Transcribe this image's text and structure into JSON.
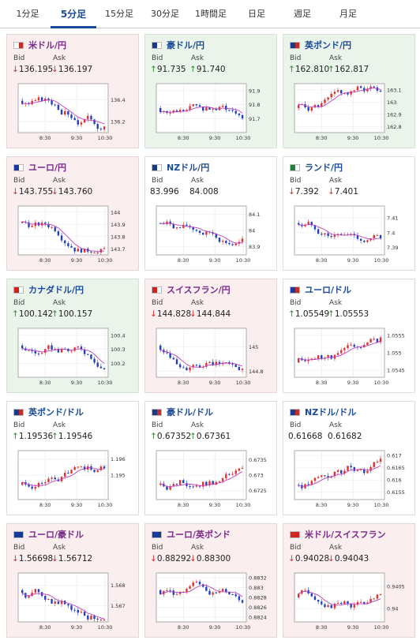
{
  "tabs": [
    {
      "label": "1分足",
      "active": false
    },
    {
      "label": "5分足",
      "active": true
    },
    {
      "label": "15分足",
      "active": false
    },
    {
      "label": "30分足",
      "active": false
    },
    {
      "label": "1時間足",
      "active": false
    },
    {
      "label": "日足",
      "active": false
    },
    {
      "label": "週足",
      "active": false
    },
    {
      "label": "月足",
      "active": false
    }
  ],
  "bid_label": "Bid",
  "ask_label": "Ask",
  "colors": {
    "up_candle": "#e03030",
    "down_candle": "#2040c0",
    "ma_line": "#c040c0",
    "down_bg": "#fbeeee",
    "up_bg": "#eaf4ea"
  },
  "x_ticks": [
    "8:30",
    "9:30",
    "10:30"
  ],
  "cards": [
    {
      "pair": "米ドル/円",
      "trend": "down",
      "bid": "136.195",
      "ask": "136.197",
      "bid_dir": "down",
      "ask_dir": "down",
      "flags": [
        "#ffffff",
        "#c0302a"
      ],
      "y_ticks": [
        "136.4",
        "136.2"
      ],
      "y_range": [
        136.1,
        136.55
      ],
      "ma_dir": -1
    },
    {
      "pair": "豪ドル/円",
      "trend": "up",
      "bid": "91.735",
      "ask": "91.740",
      "bid_dir": "up",
      "ask_dir": "up",
      "flags": [
        "#1a3a8a",
        "#ffffff"
      ],
      "y_ticks": [
        "91.9",
        "91.8",
        "91.7"
      ],
      "y_range": [
        91.6,
        91.95
      ],
      "ma_dir": 0
    },
    {
      "pair": "英ポンド/円",
      "trend": "up",
      "bid": "162.810",
      "ask": "162.817",
      "bid_dir": "up",
      "ask_dir": "up",
      "flags": [
        "#1a3a8a",
        "#c0302a"
      ],
      "y_ticks": [
        "163.1",
        "163",
        "162.9",
        "162.8"
      ],
      "y_range": [
        162.75,
        163.15
      ],
      "ma_dir": 0
    },
    {
      "pair": "ユーロ/円",
      "trend": "down",
      "bid": "143.755",
      "ask": "143.760",
      "bid_dir": "down",
      "ask_dir": "down",
      "flags": [
        "#1a3aa0",
        "#ffffff"
      ],
      "y_ticks": [
        "144",
        "143.9",
        "143.8",
        "143.7"
      ],
      "y_range": [
        143.65,
        144.05
      ],
      "ma_dir": -1
    },
    {
      "pair": "NZドル/円",
      "trend": "none",
      "bid": "83.996",
      "ask": "84.008",
      "bid_dir": "",
      "ask_dir": "",
      "flags": [
        "#1a3a8a",
        "#ffffff"
      ],
      "y_ticks": [
        "84.1",
        "84",
        "83.9"
      ],
      "y_range": [
        83.85,
        84.15
      ],
      "ma_dir": -1
    },
    {
      "pair": "ランド/円",
      "trend": "none",
      "bid": "7.392",
      "ask": "7.401",
      "bid_dir": "down",
      "ask_dir": "down",
      "flags": [
        "#208040",
        "#ffffff"
      ],
      "y_ticks": [
        "7.41",
        "7.4",
        "7.39"
      ],
      "y_range": [
        7.385,
        7.418
      ],
      "ma_dir": -1
    },
    {
      "pair": "カナダドル/円",
      "trend": "up",
      "bid": "100.142",
      "ask": "100.157",
      "bid_dir": "up",
      "ask_dir": "up",
      "flags": [
        "#d02020",
        "#ffffff"
      ],
      "y_ticks": [
        "100.4",
        "100.3",
        "100.2"
      ],
      "y_range": [
        100.1,
        100.45
      ],
      "ma_dir": -1
    },
    {
      "pair": "スイスフラン/円",
      "trend": "down",
      "bid": "144.828",
      "ask": "144.844",
      "bid_dir": "down",
      "ask_dir": "down",
      "flags": [
        "#d02020",
        "#ffffff"
      ],
      "y_ticks": [
        "145",
        "144.8"
      ],
      "y_range": [
        144.75,
        145.15
      ],
      "ma_dir": -1
    },
    {
      "pair": "ユーロ/ドル",
      "trend": "none",
      "bid": "1.05549",
      "ask": "1.05553",
      "bid_dir": "up",
      "ask_dir": "up",
      "flags": [
        "#1a3aa0",
        "#c0302a"
      ],
      "y_ticks": [
        "1.0555",
        "1.055",
        "1.0545"
      ],
      "y_range": [
        1.0543,
        1.0557
      ],
      "ma_dir": 1
    },
    {
      "pair": "英ポンド/ドル",
      "trend": "none",
      "bid": "1.19536",
      "ask": "1.19546",
      "bid_dir": "up",
      "ask_dir": "up",
      "flags": [
        "#1a3a8a",
        "#c0302a"
      ],
      "y_ticks": [
        "1.196",
        "1.195"
      ],
      "y_range": [
        1.1935,
        1.1965
      ],
      "ma_dir": 1
    },
    {
      "pair": "豪ドル/ドル",
      "trend": "none",
      "bid": "0.67352",
      "ask": "0.67361",
      "bid_dir": "up",
      "ask_dir": "up",
      "flags": [
        "#1a3a8a",
        "#c0302a"
      ],
      "y_ticks": [
        "0.6735",
        "0.673",
        "0.6725"
      ],
      "y_range": [
        0.6722,
        0.6738
      ],
      "ma_dir": 1
    },
    {
      "pair": "NZドル/ドル",
      "trend": "none",
      "bid": "0.61668",
      "ask": "0.61682",
      "bid_dir": "",
      "ask_dir": "",
      "flags": [
        "#1a3a8a",
        "#c0302a"
      ],
      "y_ticks": [
        "0.617",
        "0.6165",
        "0.616",
        "0.6155"
      ],
      "y_range": [
        0.6152,
        0.6172
      ],
      "ma_dir": 1
    },
    {
      "pair": "ユーロ/豪ドル",
      "trend": "down",
      "bid": "1.56698",
      "ask": "1.56712",
      "bid_dir": "down",
      "ask_dir": "down",
      "flags": [
        "#1a3aa0",
        "#1a3a8a"
      ],
      "y_ticks": [
        "1.568",
        "1.567"
      ],
      "y_range": [
        1.5662,
        1.5686
      ],
      "ma_dir": -1
    },
    {
      "pair": "ユーロ/英ポンド",
      "trend": "down",
      "bid": "0.88292",
      "ask": "0.88300",
      "bid_dir": "down",
      "ask_dir": "down",
      "flags": [
        "#1a3aa0",
        "#1a3a8a"
      ],
      "y_ticks": [
        "0.8832",
        "0.883",
        "0.8828",
        "0.8826",
        "0.8824"
      ],
      "y_range": [
        0.8823,
        0.8833
      ],
      "ma_dir": -1
    },
    {
      "pair": "米ドル/スイスフラン",
      "trend": "down",
      "bid": "0.94028",
      "ask": "0.94043",
      "bid_dir": "down",
      "ask_dir": "down",
      "flags": [
        "#c0302a",
        "#d02020"
      ],
      "y_ticks": [
        "0.9405",
        "0.94"
      ],
      "y_range": [
        0.9397,
        0.9408
      ],
      "ma_dir": 0
    }
  ]
}
